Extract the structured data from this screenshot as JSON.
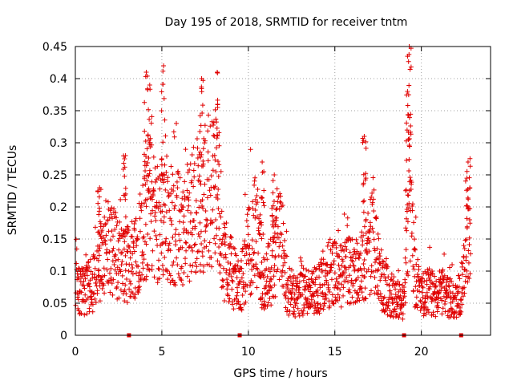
{
  "chart_data": {
    "type": "scatter",
    "title": "Day 195 of 2018, SRMTID for receiver tntm",
    "xlabel": "GPS time / hours",
    "ylabel": "SRMTID / TECUs",
    "xlim": [
      0,
      24
    ],
    "ylim": [
      0,
      0.45
    ],
    "xticks": [
      0,
      5,
      10,
      15,
      20
    ],
    "xtick_labels": [
      "0",
      "5",
      "10",
      "15",
      "20"
    ],
    "yticks": [
      0,
      0.05,
      0.1,
      0.15,
      0.2,
      0.25,
      0.3,
      0.35,
      0.4,
      0.45
    ],
    "ytick_labels": [
      "0",
      "0.05",
      "0.1",
      "0.15",
      "0.2",
      "0.25",
      "0.3",
      "0.35",
      "0.4",
      "0.45"
    ],
    "grid": true,
    "marker": "+",
    "color": "#e00000",
    "zero_markers_x": [
      3.1,
      9.5,
      19.0,
      22.3
    ],
    "series": [
      {
        "name": "SRMTID",
        "profile_x": [
          0,
          0.3,
          0.6,
          1.0,
          1.5,
          2.0,
          2.5,
          3.0,
          3.5,
          3.9,
          4.3,
          4.8,
          5.2,
          5.7,
          6.2,
          6.8,
          7.2,
          7.7,
          8.2,
          8.6,
          9.0,
          9.5,
          10.0,
          10.4,
          10.8,
          11.3,
          11.8,
          12.3,
          12.8,
          13.3,
          13.8,
          14.3,
          14.8,
          15.3,
          15.8,
          16.3,
          16.8,
          17.2,
          17.6,
          18.0,
          18.5,
          19.0,
          19.3,
          19.6,
          20.0,
          20.4,
          20.8,
          21.2,
          21.6,
          22.0,
          22.4,
          22.8
        ],
        "profile_y": [
          0.09,
          0.07,
          0.07,
          0.08,
          0.12,
          0.14,
          0.12,
          0.11,
          0.13,
          0.17,
          0.2,
          0.18,
          0.19,
          0.17,
          0.16,
          0.19,
          0.21,
          0.23,
          0.22,
          0.12,
          0.1,
          0.07,
          0.13,
          0.16,
          0.08,
          0.1,
          0.15,
          0.07,
          0.06,
          0.07,
          0.07,
          0.08,
          0.1,
          0.09,
          0.1,
          0.1,
          0.12,
          0.15,
          0.09,
          0.07,
          0.06,
          0.05,
          0.25,
          0.1,
          0.06,
          0.07,
          0.06,
          0.07,
          0.06,
          0.05,
          0.08,
          0.18
        ],
        "spikes": [
          {
            "x": 1.4,
            "y": 0.23
          },
          {
            "x": 2.9,
            "y": 0.28
          },
          {
            "x": 4.1,
            "y": 0.41
          },
          {
            "x": 4.3,
            "y": 0.39
          },
          {
            "x": 5.1,
            "y": 0.42
          },
          {
            "x": 7.3,
            "y": 0.4
          },
          {
            "x": 8.2,
            "y": 0.41
          },
          {
            "x": 10.8,
            "y": 0.27
          },
          {
            "x": 11.5,
            "y": 0.25
          },
          {
            "x": 16.7,
            "y": 0.31
          },
          {
            "x": 19.3,
            "y": 0.45
          },
          {
            "x": 19.2,
            "y": 0.38
          },
          {
            "x": 22.7,
            "y": 0.27
          }
        ]
      }
    ]
  }
}
